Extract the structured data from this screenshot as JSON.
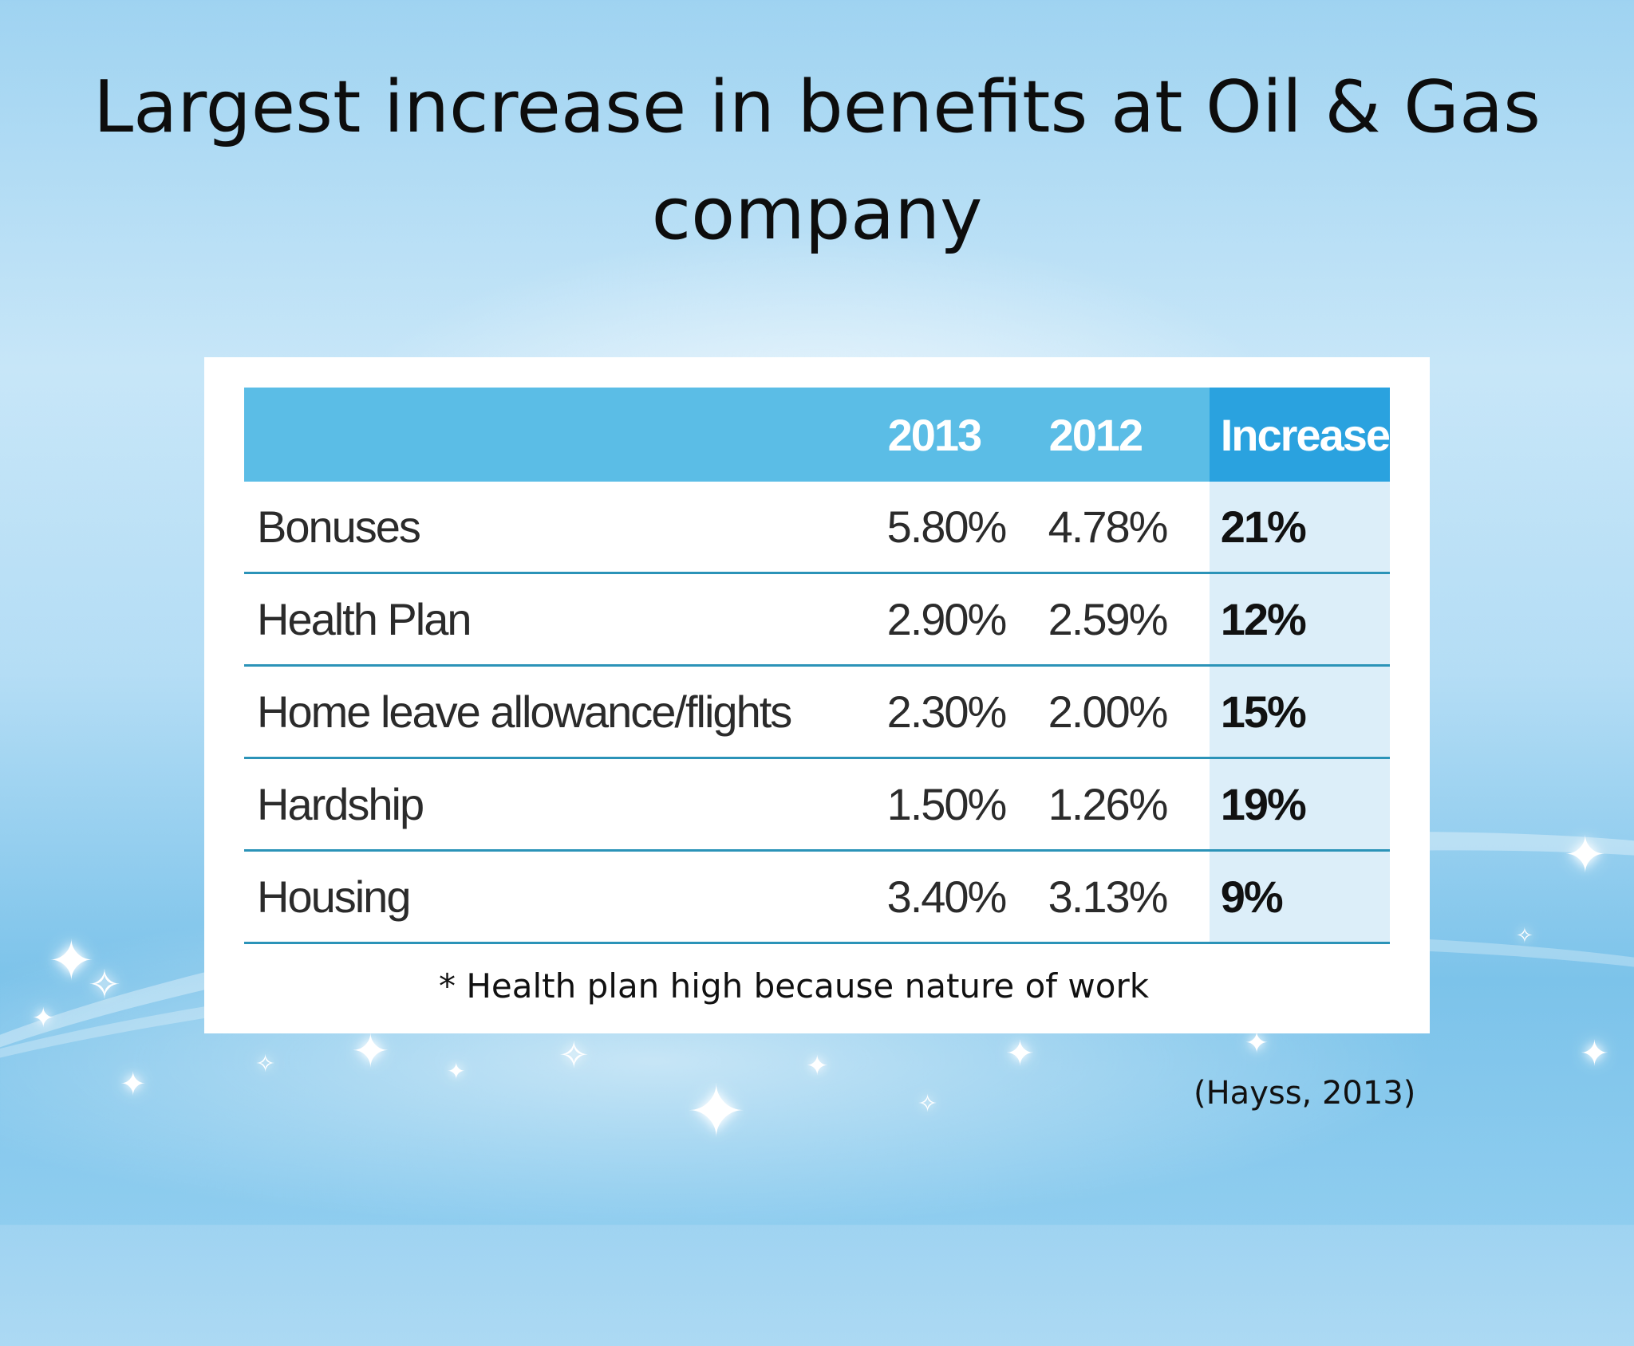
{
  "slide": {
    "title": "Largest increase in benefits at Oil & Gas company",
    "note": "* Health plan high because nature of work",
    "source": "(Hayss, 2013)"
  },
  "table": {
    "headers": [
      "",
      "2013",
      "2012",
      "Increase"
    ],
    "rows": [
      {
        "label": "Bonuses",
        "y2013": "5.80%",
        "y2012": "4.78%",
        "increase": "21%"
      },
      {
        "label": "Health Plan",
        "y2013": "2.90%",
        "y2012": "2.59%",
        "increase": "12%"
      },
      {
        "label": "Home leave allowance/flights",
        "y2013": "2.30%",
        "y2012": "2.00%",
        "increase": "15%"
      },
      {
        "label": "Hardship",
        "y2013": "1.50%",
        "y2012": "1.26%",
        "increase": "19%"
      },
      {
        "label": "Housing",
        "y2013": "3.40%",
        "y2012": "3.13%",
        "increase": "9%"
      }
    ]
  },
  "colors": {
    "header_bg": "#5bbde6",
    "increase_header_bg": "#2aa2df",
    "increase_cell_bg": "#dceef9",
    "row_border": "#2b93b8"
  }
}
